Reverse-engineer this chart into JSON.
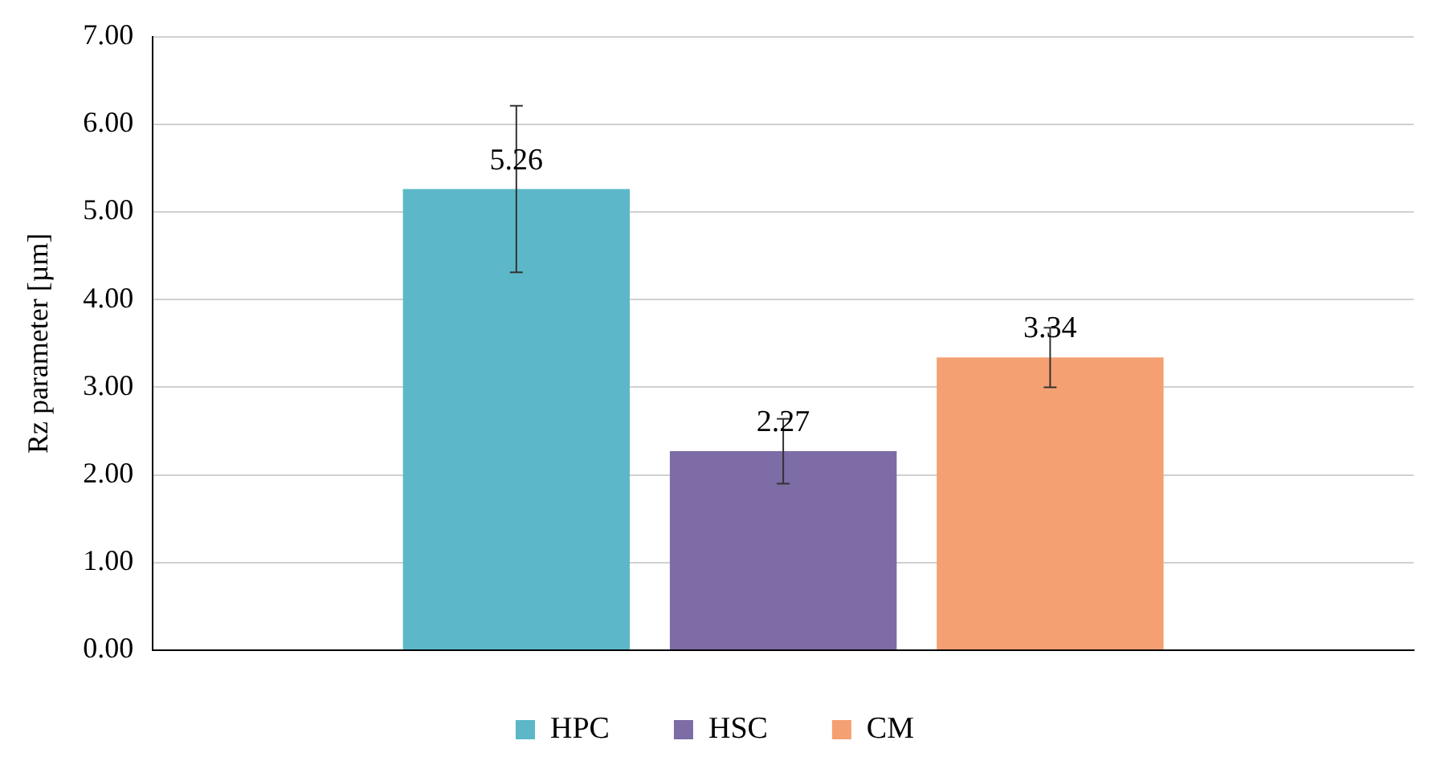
{
  "chart_data": {
    "type": "bar",
    "ylabel": "Rz parameter [µm]",
    "categories": [
      null
    ],
    "series": [
      {
        "name": "HPC",
        "color": "#5cb8c8",
        "values": [
          5.26
        ],
        "errors": [
          0.95
        ]
      },
      {
        "name": "HSC",
        "color": "#7d6ca6",
        "values": [
          2.27
        ],
        "errors": [
          0.37
        ]
      },
      {
        "name": "CM",
        "color": "#f5a073",
        "values": [
          3.34
        ],
        "errors": [
          0.34
        ]
      }
    ],
    "ylim": [
      0,
      7
    ],
    "yticks": [
      {
        "value": 0,
        "label": "0.00"
      },
      {
        "value": 1,
        "label": "1.00"
      },
      {
        "value": 2,
        "label": "2.00"
      },
      {
        "value": 3,
        "label": "3.00"
      },
      {
        "value": 4,
        "label": "4.00"
      },
      {
        "value": 5,
        "label": "5.00"
      },
      {
        "value": 6,
        "label": "6.00"
      },
      {
        "value": 7,
        "label": "7.00"
      }
    ],
    "grid": "y",
    "legend": "bottom",
    "tick_labels": "y",
    "data_labels": true
  }
}
